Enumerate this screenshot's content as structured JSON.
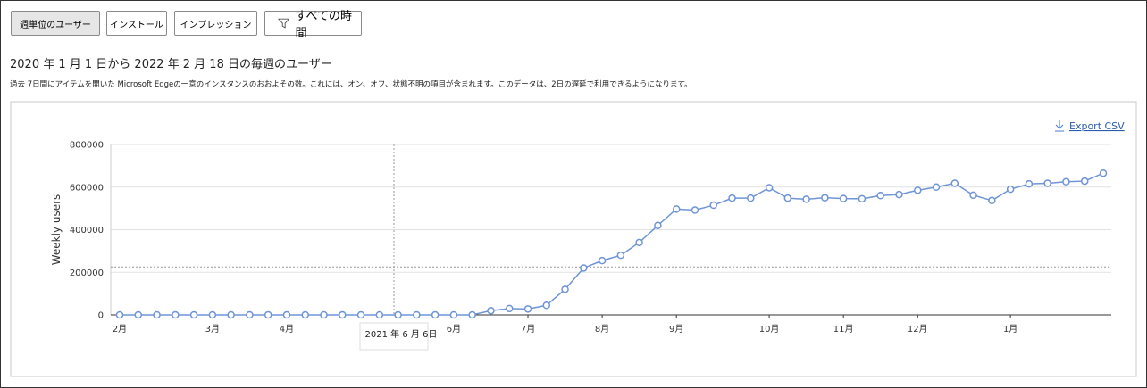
{
  "buttons": [
    {
      "label": "週単位のユーザー",
      "selected": true
    },
    {
      "label": "インストール",
      "selected": false
    },
    {
      "label": "インプレッション",
      "selected": false
    }
  ],
  "filter_button": "すべての時間",
  "heading": "2020 年 1 月 1 日から 2022 年 2 月 18 日の毎週のユーザー",
  "description": "過去 7日間にアイテムを開いた Microsoft Edgeの一意のインスタンスのおおよその数。これには、オン、オフ、状態不明の項目が含まれます。このデータは、2日の遅延で利用できるようになります。",
  "export_label": "Export CSV",
  "chart_data": {
    "type": "line",
    "y_label": "Weekly users",
    "categories": [
      "2月",
      null,
      null,
      null,
      null,
      "3月",
      null,
      null,
      null,
      "4月",
      null,
      null,
      null,
      null,
      null,
      null,
      null,
      null,
      "6月",
      null,
      null,
      null,
      "7月",
      null,
      null,
      null,
      "8月",
      null,
      null,
      null,
      "9月",
      null,
      null,
      null,
      null,
      "10月",
      null,
      null,
      null,
      "11月",
      null,
      null,
      null,
      "12月",
      null,
      null,
      null,
      null,
      "1月",
      null,
      null,
      null,
      null,
      null
    ],
    "series": [
      {
        "color": "#6f95d6",
        "values": [
          0,
          0,
          0,
          0,
          0,
          0,
          0,
          0,
          0,
          0,
          0,
          0,
          0,
          0,
          0,
          0,
          0,
          0,
          0,
          0,
          20000,
          30000,
          28000,
          45000,
          120000,
          220000,
          255000,
          280000,
          340000,
          420000,
          497000,
          492000,
          515000,
          548000,
          548000,
          597000,
          548000,
          543000,
          550000,
          546000,
          545000,
          560000,
          565000,
          585000,
          600000,
          618000,
          562000,
          537000,
          590000,
          615000,
          618000,
          625000,
          628000,
          665000
        ]
      }
    ],
    "ylim": [
      0,
      800000
    ],
    "yticks": [
      0,
      200000,
      400000,
      600000,
      800000
    ],
    "grid": true,
    "reference_line": 225000,
    "tooltip": "2021 年 6 月 6日"
  }
}
